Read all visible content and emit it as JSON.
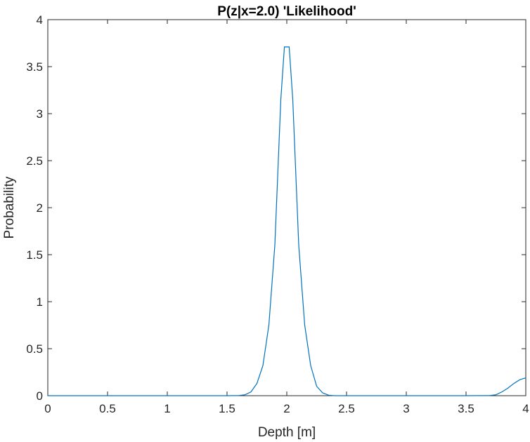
{
  "chart_data": {
    "type": "line",
    "title": "P(z|x=2.0) 'Likelihood'",
    "xlabel": "Depth [m]",
    "ylabel": "Probability",
    "xlim": [
      0,
      4
    ],
    "ylim": [
      0,
      4
    ],
    "xticks": [
      0,
      0.5,
      1,
      1.5,
      2,
      2.5,
      3,
      3.5,
      4
    ],
    "xtick_labels": [
      "0",
      "0.5",
      "1",
      "1.5",
      "2",
      "2.5",
      "3",
      "3.5",
      "4"
    ],
    "yticks": [
      0,
      0.5,
      1,
      1.5,
      2,
      2.5,
      3,
      3.5,
      4
    ],
    "ytick_labels": [
      "0",
      "0.5",
      "1",
      "1.5",
      "2",
      "2.5",
      "3",
      "3.5",
      "4"
    ],
    "grid": false,
    "line_color": "#0072BD",
    "series": [
      {
        "x": [
          0,
          1.5,
          1.6,
          1.65,
          1.7,
          1.75,
          1.8,
          1.85,
          1.9,
          1.95,
          1.98,
          2.02,
          2.05,
          2.1,
          2.15,
          2.2,
          2.25,
          2.3,
          2.35,
          2.4,
          2.5,
          3.0,
          3.5,
          3.7,
          3.75,
          3.8,
          3.85,
          3.9,
          3.95,
          4.0
        ],
        "y": [
          0,
          0,
          0.002,
          0.01,
          0.04,
          0.13,
          0.32,
          0.75,
          1.6,
          3.15,
          3.71,
          3.71,
          3.15,
          1.6,
          0.75,
          0.32,
          0.1,
          0.03,
          0.005,
          0,
          0,
          0,
          0,
          0.002,
          0.01,
          0.04,
          0.08,
          0.13,
          0.17,
          0.19
        ]
      }
    ]
  }
}
